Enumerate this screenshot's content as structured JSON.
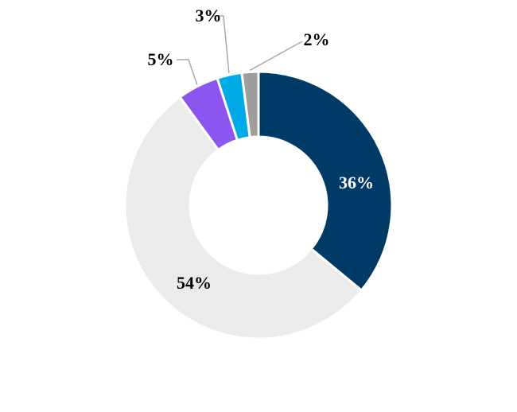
{
  "chart_data": {
    "type": "donut",
    "categories": [
      null,
      null,
      null,
      null,
      null
    ],
    "values": [
      36,
      54,
      5,
      3,
      2
    ],
    "value_labels": [
      "36%",
      "54%",
      "5%",
      "3%",
      "2%"
    ],
    "colors": [
      "#003a66",
      "#ebebeb",
      "#8c55f0",
      "#00aae6",
      "#9e9e9e"
    ]
  }
}
